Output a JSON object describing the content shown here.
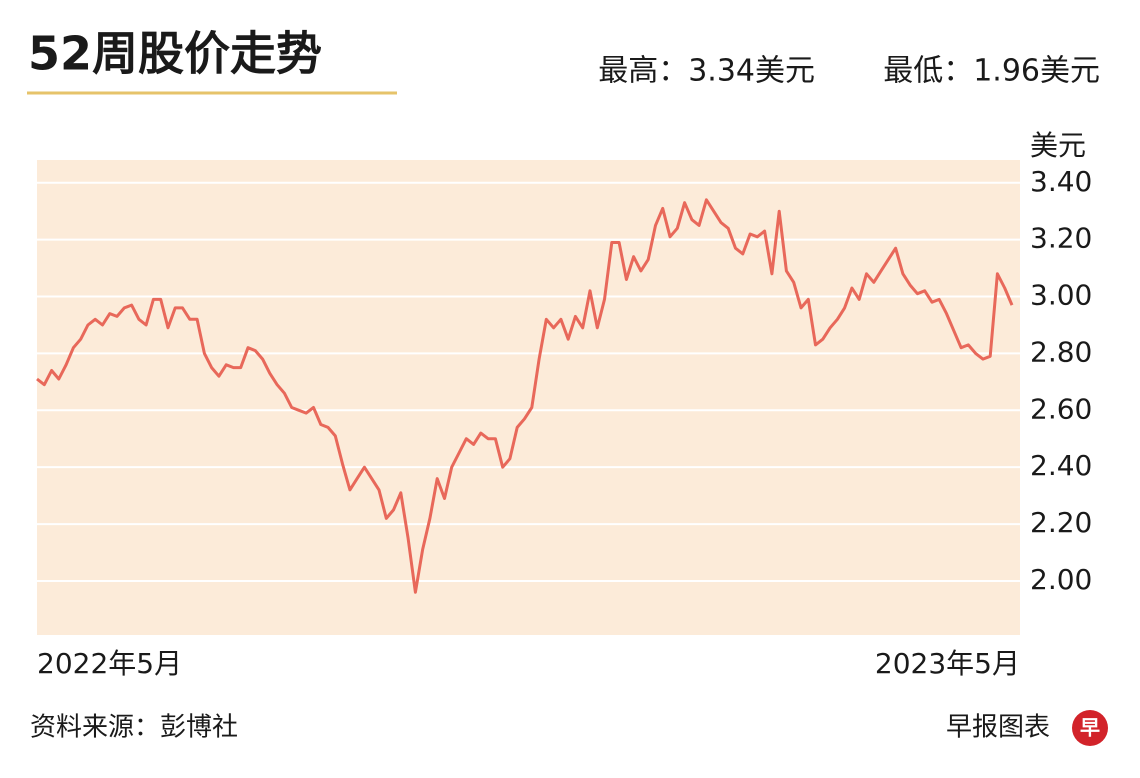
{
  "chart_data": {
    "type": "line",
    "title": "52周股价走势",
    "annotations": [
      "最高：3.34美元",
      "最低：1.96美元"
    ],
    "y_axis_label": "美元",
    "source": "资料来源：彭博社",
    "credit": "早报图表",
    "logo": "早",
    "color": "#e8685a",
    "grid": true,
    "ylim": [
      1.81,
      3.48
    ],
    "yticks": [
      {
        "value": 2.0,
        "label": "2.00"
      },
      {
        "value": 2.2,
        "label": "2.20"
      },
      {
        "value": 2.4,
        "label": "2.40"
      },
      {
        "value": 2.6,
        "label": "2.60"
      },
      {
        "value": 2.8,
        "label": "2.80"
      },
      {
        "value": 3.0,
        "label": "3.00"
      },
      {
        "value": 3.2,
        "label": "3.20"
      },
      {
        "value": 3.4,
        "label": "3.40"
      }
    ],
    "categories": [
      "2022年5月",
      null,
      null,
      null,
      null,
      null,
      null,
      null,
      null,
      null,
      null,
      null,
      null,
      null,
      null,
      null,
      null,
      null,
      null,
      null,
      null,
      null,
      null,
      null,
      null,
      null,
      null,
      null,
      null,
      null,
      null,
      null,
      null,
      null,
      null,
      null,
      null,
      null,
      null,
      null,
      null,
      null,
      null,
      null,
      null,
      null,
      null,
      null,
      null,
      null,
      null,
      null,
      null,
      null,
      null,
      null,
      null,
      null,
      null,
      null,
      null,
      null,
      null,
      null,
      null,
      null,
      null,
      null,
      null,
      null,
      null,
      null,
      null,
      null,
      null,
      null,
      null,
      null,
      null,
      null,
      null,
      null,
      null,
      null,
      null,
      null,
      null,
      null,
      null,
      null,
      null,
      null,
      null,
      null,
      null,
      null,
      null,
      null,
      null,
      null,
      null,
      null,
      null,
      null,
      null,
      null,
      null,
      null,
      null,
      null,
      null,
      null,
      null,
      null,
      null,
      null,
      null,
      null,
      null,
      null,
      null,
      null,
      null,
      null,
      null,
      null,
      null,
      null,
      null,
      null,
      null,
      null,
      null,
      null,
      "2023年5月"
    ],
    "values": [
      2.71,
      2.69,
      2.74,
      2.71,
      2.76,
      2.82,
      2.85,
      2.9,
      2.92,
      2.9,
      2.94,
      2.93,
      2.96,
      2.97,
      2.92,
      2.9,
      2.99,
      2.99,
      2.89,
      2.96,
      2.96,
      2.92,
      2.92,
      2.8,
      2.75,
      2.72,
      2.76,
      2.75,
      2.75,
      2.82,
      2.81,
      2.78,
      2.73,
      2.69,
      2.66,
      2.61,
      2.6,
      2.59,
      2.61,
      2.55,
      2.54,
      2.51,
      2.41,
      2.32,
      2.36,
      2.4,
      2.36,
      2.32,
      2.22,
      2.25,
      2.31,
      2.15,
      1.96,
      2.11,
      2.22,
      2.36,
      2.29,
      2.4,
      2.45,
      2.5,
      2.48,
      2.52,
      2.5,
      2.5,
      2.4,
      2.43,
      2.54,
      2.57,
      2.61,
      2.78,
      2.92,
      2.89,
      2.92,
      2.85,
      2.93,
      2.89,
      3.02,
      2.89,
      2.99,
      3.19,
      3.19,
      3.06,
      3.14,
      3.09,
      3.13,
      3.25,
      3.31,
      3.21,
      3.24,
      3.33,
      3.27,
      3.25,
      3.34,
      3.3,
      3.26,
      3.24,
      3.17,
      3.15,
      3.22,
      3.21,
      3.23,
      3.08,
      3.3,
      3.09,
      3.05,
      2.96,
      2.99,
      2.83,
      2.85,
      2.89,
      2.92,
      2.96,
      3.03,
      2.99,
      3.08,
      3.05,
      3.09,
      3.13,
      3.17,
      3.08,
      3.04,
      3.01,
      3.02,
      2.98,
      2.99,
      2.94,
      2.88,
      2.82,
      2.83,
      2.8,
      2.78,
      2.79,
      3.08,
      3.03,
      2.97
    ]
  }
}
